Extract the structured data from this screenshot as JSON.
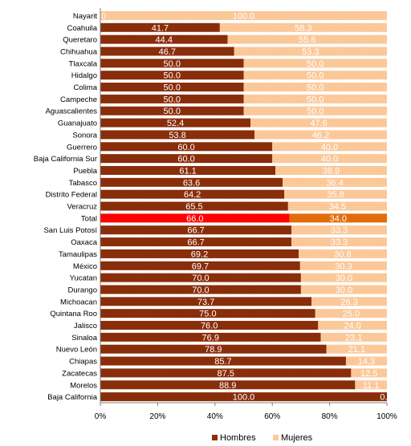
{
  "chart_data": {
    "type": "bar",
    "orientation": "horizontal",
    "stacked": true,
    "percent_stacked": true,
    "categories": [
      "Nayarit",
      "Coahuila",
      "Queretaro",
      "Chihuahua",
      "Tlaxcala",
      "Hidalgo",
      "Colima",
      "Campeche",
      "Aguascalientes",
      "Guanajuato",
      "Sonora",
      "Guerrero",
      "Baja California Sur",
      "Puebla",
      "Tabasco",
      "Distrito Federal",
      "Veracruz",
      "Total",
      "San Luis Potosí",
      "Oaxaca",
      "Tamaulipas",
      "México",
      "Yucatan",
      "Durango",
      "Michoacan",
      "Quintana Roo",
      "Jalisco",
      "Sinaloa",
      "Nuevo León",
      "Chiapas",
      "Zacatecas",
      "Morelos",
      "Baja California"
    ],
    "series": [
      {
        "name": "Hombres",
        "color": "#8b2e0a",
        "values": [
          0,
          41.7,
          44.4,
          46.7,
          50,
          50,
          50,
          50,
          50,
          52.4,
          53.8,
          60,
          60,
          61.1,
          63.6,
          64.2,
          65.5,
          66,
          66.7,
          66.7,
          69.2,
          69.7,
          70,
          70,
          73.7,
          75,
          76,
          76.9,
          78.9,
          85.7,
          87.5,
          88.9,
          100
        ],
        "labels": [
          "",
          "41.7",
          "44.4",
          "46.7",
          "50.0",
          "50.0",
          "50.0",
          "50.0",
          "50.0",
          "52.4",
          "53.8",
          "60.0",
          "60.0",
          "61.1",
          "63.6",
          "64.2",
          "65.5",
          "66.0",
          "66.7",
          "66.7",
          "69.2",
          "69.7",
          "70.0",
          "70.0",
          "73.7",
          "75.0",
          "76.0",
          "76.9",
          "78.9",
          "85.7",
          "87.5",
          "88.9",
          "100.0"
        ]
      },
      {
        "name": "Mujeres",
        "color": "#fcc99a",
        "values": [
          100,
          58.3,
          55.6,
          53.3,
          50,
          50,
          50,
          50,
          50,
          47.6,
          46.2,
          40,
          40,
          38.9,
          36.4,
          35.8,
          34.5,
          34,
          33.3,
          33.3,
          30.8,
          30.3,
          30,
          30,
          26.3,
          25,
          24,
          23.1,
          21.1,
          14.3,
          12.5,
          11.1,
          0
        ],
        "labels": [
          "100.0",
          "58.3",
          "55.6",
          "53.3",
          "50.0",
          "50.0",
          "50.0",
          "50.0",
          "50.0",
          "47.6",
          "46.2",
          "40.0",
          "40.0",
          "38.9",
          "36.4",
          "35.8",
          "34.5",
          "34.0",
          "33.3",
          "33.3",
          "30.8",
          "30.3",
          "30.0",
          "30.0",
          "26.3",
          "25.0",
          "24.0",
          "23.1",
          "21.1",
          "14.3",
          "12.5",
          "11.1",
          "0.0"
        ]
      }
    ],
    "highlight": {
      "category": "Total",
      "hombres_color": "#ff0000",
      "mujeres_color": "#e36c0a"
    },
    "zero_labels": {
      "Nayarit": "0",
      "Baja California": "0.0"
    },
    "xaxis": {
      "ticks": [
        "0%",
        "20%",
        "40%",
        "60%",
        "80%",
        "100%"
      ],
      "range": [
        0,
        100
      ]
    },
    "legend": {
      "position": "bottom",
      "entries": [
        "Hombres",
        "Mujeres"
      ]
    },
    "grid": false
  }
}
